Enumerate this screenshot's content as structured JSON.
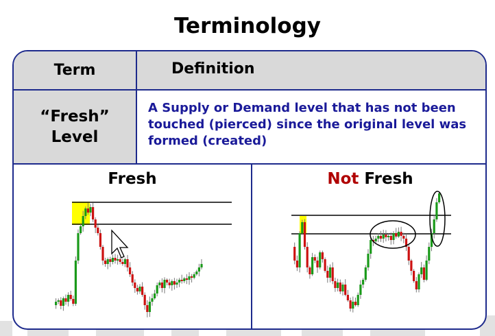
{
  "slide": {
    "title": "Terminology"
  },
  "table": {
    "header": {
      "term": "Term",
      "definition": "Definition"
    },
    "row": {
      "term_line1": "“Fresh”",
      "term_line2": "Level",
      "definition": "A Supply or Demand level that has not been touched (pierced) since the original level was formed (created)"
    }
  },
  "panels": {
    "left_title": "Fresh",
    "right_title_not": "Not",
    "right_title_rest": " Fresh"
  },
  "colors": {
    "border": "#1d2a8c",
    "definition_text": "#1a1a99",
    "not_text": "#b00000",
    "up_candle": "#1a9a1a",
    "down_candle": "#cc1111",
    "highlight": "#ffff00"
  }
}
